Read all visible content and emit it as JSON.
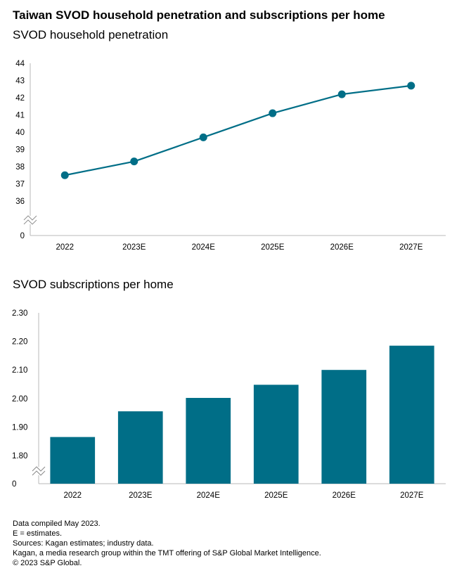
{
  "title": "Taiwan SVOD household penetration and subscriptions per home",
  "colors": {
    "series": "#006e87",
    "axis": "#b8b8b8",
    "text": "#000000"
  },
  "chart_data": [
    {
      "type": "line",
      "title": "SVOD household penetration",
      "categories": [
        "2022",
        "2023E",
        "2024E",
        "2025E",
        "2026E",
        "2027E"
      ],
      "values": [
        37.5,
        38.3,
        39.7,
        41.1,
        42.2,
        42.7
      ],
      "ylim": [
        36,
        44
      ],
      "yticks": [
        "44",
        "43",
        "42",
        "41",
        "40",
        "39",
        "38",
        "37",
        "36"
      ],
      "axis_break": true,
      "axis_zero_label": "0"
    },
    {
      "type": "bar",
      "title": "SVOD subscriptions per home",
      "categories": [
        "2022",
        "2023E",
        "2024E",
        "2025E",
        "2026E",
        "2027E"
      ],
      "values": [
        1.865,
        1.955,
        2.002,
        2.048,
        2.1,
        2.185
      ],
      "ylim": [
        1.8,
        2.3
      ],
      "yticks": [
        "2.30",
        "2.20",
        "2.10",
        "2.00",
        "1.90",
        "1.80"
      ],
      "axis_break": true,
      "axis_zero_label": "0"
    }
  ],
  "footnotes": [
    "Data compiled May 2023.",
    "E = estimates.",
    "Sources: Kagan estimates; industry data.",
    "Kagan, a media research group within the TMT offering of S&P Global Market Intelligence.",
    "© 2023 S&P Global."
  ]
}
